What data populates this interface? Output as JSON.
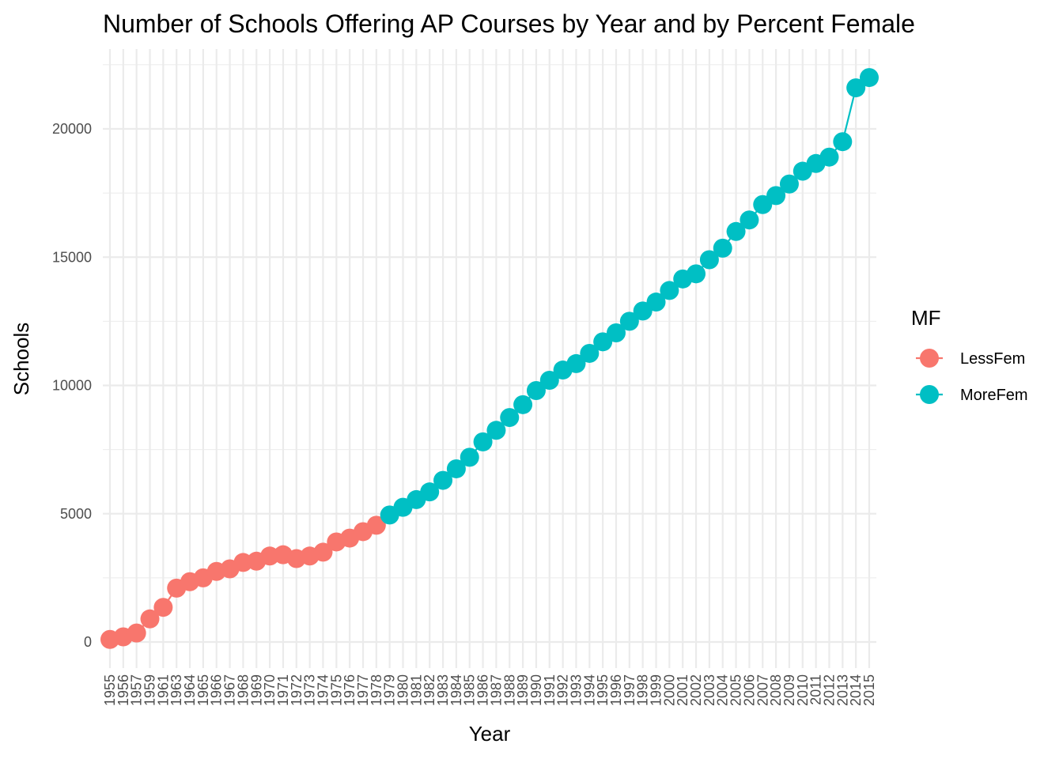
{
  "chart_data": {
    "type": "line",
    "title": "Number of Schools Offering AP Courses by Year and by Percent Female",
    "xlabel": "Year",
    "ylabel": "Schools",
    "ylim": [
      -1000,
      22600
    ],
    "y_ticks": [
      0,
      5000,
      10000,
      15000,
      20000
    ],
    "x_categories": [
      "1955",
      "1956",
      "1957",
      "1959",
      "1961",
      "1963",
      "1964",
      "1965",
      "1966",
      "1967",
      "1968",
      "1969",
      "1970",
      "1971",
      "1972",
      "1973",
      "1974",
      "1975",
      "1976",
      "1977",
      "1978",
      "1979",
      "1980",
      "1981",
      "1982",
      "1983",
      "1984",
      "1985",
      "1986",
      "1987",
      "1988",
      "1989",
      "1990",
      "1991",
      "1992",
      "1993",
      "1994",
      "1995",
      "1996",
      "1997",
      "1998",
      "1999",
      "2000",
      "2001",
      "2002",
      "2003",
      "2004",
      "2005",
      "2006",
      "2007",
      "2008",
      "2009",
      "2010",
      "2011",
      "2012",
      "2013",
      "2014",
      "2015"
    ],
    "legend": {
      "title": "MF",
      "position": "right"
    },
    "series": [
      {
        "name": "LessFem",
        "color": "#F8766D",
        "points": [
          {
            "x": "1955",
            "y": 100
          },
          {
            "x": "1956",
            "y": 200
          },
          {
            "x": "1957",
            "y": 350
          },
          {
            "x": "1959",
            "y": 900
          },
          {
            "x": "1961",
            "y": 1350
          },
          {
            "x": "1963",
            "y": 2100
          },
          {
            "x": "1964",
            "y": 2350
          },
          {
            "x": "1965",
            "y": 2500
          },
          {
            "x": "1966",
            "y": 2750
          },
          {
            "x": "1967",
            "y": 2850
          },
          {
            "x": "1968",
            "y": 3100
          },
          {
            "x": "1969",
            "y": 3150
          },
          {
            "x": "1970",
            "y": 3350
          },
          {
            "x": "1971",
            "y": 3400
          },
          {
            "x": "1972",
            "y": 3250
          },
          {
            "x": "1973",
            "y": 3350
          },
          {
            "x": "1974",
            "y": 3500
          },
          {
            "x": "1975",
            "y": 3900
          },
          {
            "x": "1976",
            "y": 4050
          },
          {
            "x": "1977",
            "y": 4300
          },
          {
            "x": "1978",
            "y": 4550
          }
        ]
      },
      {
        "name": "MoreFem",
        "color": "#00BFC4",
        "points": [
          {
            "x": "1979",
            "y": 4950
          },
          {
            "x": "1980",
            "y": 5250
          },
          {
            "x": "1981",
            "y": 5550
          },
          {
            "x": "1982",
            "y": 5850
          },
          {
            "x": "1983",
            "y": 6300
          },
          {
            "x": "1984",
            "y": 6750
          },
          {
            "x": "1985",
            "y": 7200
          },
          {
            "x": "1986",
            "y": 7800
          },
          {
            "x": "1987",
            "y": 8250
          },
          {
            "x": "1988",
            "y": 8750
          },
          {
            "x": "1989",
            "y": 9250
          },
          {
            "x": "1990",
            "y": 9800
          },
          {
            "x": "1991",
            "y": 10200
          },
          {
            "x": "1992",
            "y": 10600
          },
          {
            "x": "1993",
            "y": 10850
          },
          {
            "x": "1994",
            "y": 11250
          },
          {
            "x": "1995",
            "y": 11700
          },
          {
            "x": "1996",
            "y": 12050
          },
          {
            "x": "1997",
            "y": 12500
          },
          {
            "x": "1998",
            "y": 12900
          },
          {
            "x": "1999",
            "y": 13250
          },
          {
            "x": "2000",
            "y": 13700
          },
          {
            "x": "2001",
            "y": 14150
          },
          {
            "x": "2002",
            "y": 14350
          },
          {
            "x": "2003",
            "y": 14900
          },
          {
            "x": "2004",
            "y": 15350
          },
          {
            "x": "2005",
            "y": 16000
          },
          {
            "x": "2006",
            "y": 16450
          },
          {
            "x": "2007",
            "y": 17050
          },
          {
            "x": "2008",
            "y": 17400
          },
          {
            "x": "2009",
            "y": 17850
          },
          {
            "x": "2010",
            "y": 18350
          },
          {
            "x": "2011",
            "y": 18650
          },
          {
            "x": "2012",
            "y": 18900
          },
          {
            "x": "2013",
            "y": 19500
          },
          {
            "x": "2014",
            "y": 21600
          },
          {
            "x": "2015",
            "y": 22000
          }
        ]
      }
    ]
  }
}
